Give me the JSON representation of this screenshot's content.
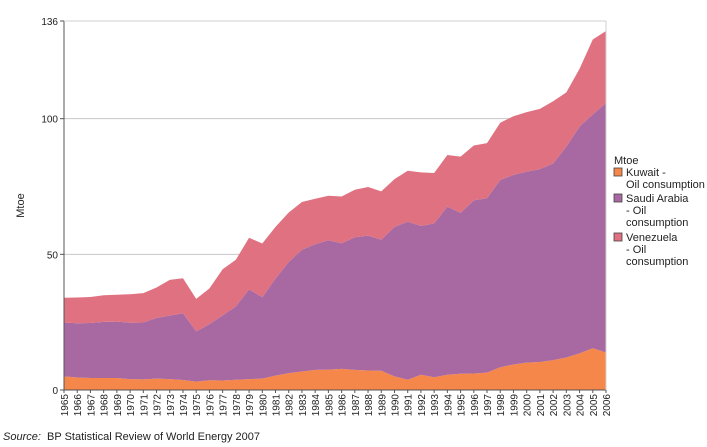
{
  "chart_data": {
    "type": "area",
    "stacked": true,
    "ylabel": "Mtoe",
    "ylim": [
      0,
      136
    ],
    "yticks": [
      0,
      50,
      100,
      136
    ],
    "grid": true,
    "legend_position": "right",
    "legend_title": "Mtoe",
    "x": [
      "1965",
      "1966",
      "1967",
      "1968",
      "1969",
      "1970",
      "1971",
      "1972",
      "1973",
      "1974",
      "1975",
      "1976",
      "1977",
      "1978",
      "1979",
      "1980",
      "1981",
      "1982",
      "1983",
      "1984",
      "1985",
      "1986",
      "1987",
      "1988",
      "1989",
      "1990",
      "1991",
      "1992",
      "1993",
      "1994",
      "1995",
      "1996",
      "1997",
      "1998",
      "1999",
      "2000",
      "2001",
      "2002",
      "2003",
      "2004",
      "2005",
      "2006"
    ],
    "series": [
      {
        "name": "Kuwait - Oil consumption",
        "color": "#f5874a",
        "values": [
          5.0,
          4.6,
          4.4,
          4.4,
          4.4,
          4.0,
          3.9,
          4.2,
          4.0,
          3.7,
          3.1,
          3.6,
          3.5,
          3.8,
          4.0,
          4.2,
          5.3,
          6.2,
          6.8,
          7.4,
          7.5,
          7.8,
          7.4,
          7.2,
          7.1,
          5.0,
          3.8,
          5.6,
          4.7,
          5.6,
          6.0,
          6.1,
          6.4,
          8.4,
          9.4,
          10.1,
          10.3,
          11.0,
          12.0,
          13.5,
          15.4,
          13.8
        ]
      },
      {
        "name": "Saudi Arabia - Oil consumption",
        "color": "#a869a3",
        "values": [
          19.9,
          20.0,
          20.3,
          20.7,
          20.8,
          20.8,
          21.0,
          22.4,
          23.4,
          24.6,
          18.5,
          20.7,
          24.0,
          27.0,
          33.1,
          30.0,
          35.8,
          41.0,
          44.9,
          46.3,
          47.7,
          46.3,
          48.9,
          49.7,
          48.3,
          55.1,
          58.2,
          54.9,
          56.7,
          62.0,
          59.3,
          63.8,
          64.3,
          69.0,
          69.9,
          70.4,
          71.1,
          72.5,
          77.7,
          83.6,
          86.2,
          92.0
        ]
      },
      {
        "name": "Venezuela - Oil consumption",
        "color": "#e07180",
        "values": [
          9.1,
          9.5,
          9.6,
          9.8,
          9.9,
          10.5,
          10.8,
          11.2,
          13.2,
          12.9,
          12.0,
          13.1,
          17.0,
          17.2,
          19.0,
          19.8,
          19.0,
          18.2,
          17.6,
          16.8,
          16.4,
          17.2,
          17.5,
          17.9,
          17.8,
          17.6,
          18.8,
          19.7,
          18.6,
          19.0,
          20.7,
          20.2,
          20.3,
          21.1,
          21.6,
          21.9,
          22.2,
          22.9,
          20.0,
          21.3,
          27.6,
          26.5
        ]
      }
    ],
    "source_label": "Source:",
    "source_text": "BP Statistical Review of World Energy 2007"
  }
}
